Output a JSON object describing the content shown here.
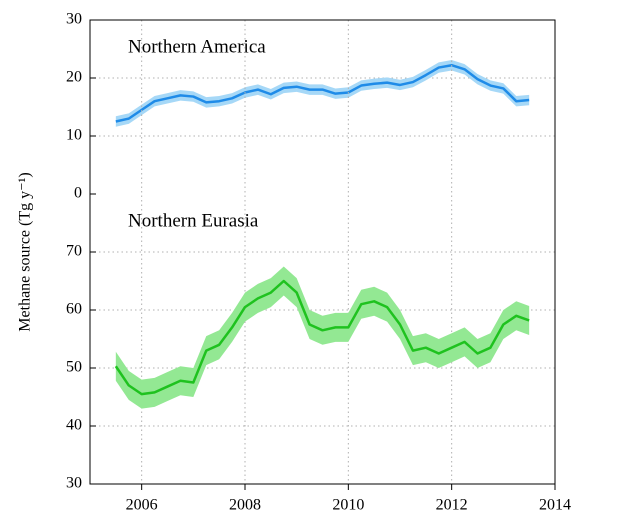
{
  "ylabel": "Methane source (Tg y⁻¹)",
  "chart_data": [
    {
      "type": "line",
      "annotation": "Northern America",
      "xlim": [
        2005,
        2014
      ],
      "ylim": [
        0,
        30
      ],
      "yticks": [
        0,
        10,
        20,
        30
      ],
      "grid": true,
      "series": [
        {
          "color": "#1f8be8",
          "band_color": "#a6d8f7",
          "x": [
            2005.5,
            2005.75,
            2006,
            2006.25,
            2006.5,
            2006.75,
            2007,
            2007.25,
            2007.5,
            2007.75,
            2008,
            2008.25,
            2008.5,
            2008.75,
            2009,
            2009.25,
            2009.5,
            2009.75,
            2010,
            2010.25,
            2010.5,
            2010.75,
            2011,
            2011.25,
            2011.5,
            2011.75,
            2012,
            2012.25,
            2012.5,
            2012.75,
            2013,
            2013.25,
            2013.5
          ],
          "values": [
            12.5,
            13,
            14.5,
            16,
            16.5,
            17,
            16.8,
            15.8,
            16,
            16.5,
            17.5,
            18,
            17.2,
            18.3,
            18.5,
            18,
            18,
            17.3,
            17.5,
            18.7,
            19,
            19.2,
            18.8,
            19.3,
            20.5,
            21.8,
            22.2,
            21.5,
            19.8,
            18.7,
            18.2,
            16,
            16.2
          ],
          "upper": [
            13.4,
            13.9,
            15.4,
            16.9,
            17.4,
            17.9,
            17.7,
            16.7,
            16.9,
            17.4,
            18.4,
            18.9,
            18.1,
            19.2,
            19.4,
            18.9,
            18.9,
            18.2,
            18.4,
            19.6,
            19.9,
            20.1,
            19.7,
            20.2,
            21.4,
            22.7,
            23.1,
            22.4,
            20.7,
            19.6,
            19.1,
            16.9,
            17.1
          ],
          "lower": [
            11.6,
            12.1,
            13.6,
            15.1,
            15.6,
            16.1,
            15.9,
            14.9,
            15.1,
            15.6,
            16.6,
            17.1,
            16.3,
            17.4,
            17.6,
            17.1,
            17.1,
            16.4,
            16.6,
            17.8,
            18.1,
            18.3,
            17.9,
            18.4,
            19.6,
            20.9,
            21.3,
            20.6,
            18.9,
            17.8,
            17.3,
            15.1,
            15.3
          ]
        }
      ]
    },
    {
      "type": "line",
      "annotation": "Northern Eurasia",
      "xlim": [
        2005,
        2014
      ],
      "xticks": [
        2006,
        2008,
        2010,
        2012,
        2014
      ],
      "ylim": [
        30,
        80
      ],
      "yticks": [
        30,
        40,
        50,
        60,
        70
      ],
      "grid": true,
      "series": [
        {
          "color": "#1fc21f",
          "band_color": "#93e893",
          "x": [
            2005.5,
            2005.75,
            2006,
            2006.25,
            2006.5,
            2006.75,
            2007,
            2007.25,
            2007.5,
            2007.75,
            2008,
            2008.25,
            2008.5,
            2008.75,
            2009,
            2009.25,
            2009.5,
            2009.75,
            2010,
            2010.25,
            2010.5,
            2010.75,
            2011,
            2011.25,
            2011.5,
            2011.75,
            2012,
            2012.25,
            2012.5,
            2012.75,
            2013,
            2013.25,
            2013.5
          ],
          "values": [
            50.3,
            47,
            45.5,
            45.8,
            46.8,
            47.8,
            47.5,
            53,
            54,
            57,
            60.5,
            62,
            63,
            65,
            63,
            57.5,
            56.5,
            57,
            57,
            61,
            61.5,
            60.5,
            57.5,
            53,
            53.5,
            52.5,
            53.5,
            54.5,
            52.5,
            53.5,
            57.5,
            59,
            58.2
          ],
          "upper": [
            52.8,
            49.5,
            48,
            48.3,
            49.3,
            50.3,
            50,
            55.5,
            56.5,
            59.5,
            63,
            64.5,
            65.5,
            67.5,
            65.5,
            60,
            59,
            59.5,
            59.5,
            63.5,
            64,
            63,
            60,
            55.5,
            56,
            55,
            56,
            57,
            55,
            56,
            60,
            61.5,
            60.7
          ],
          "lower": [
            47.8,
            44.5,
            43,
            43.3,
            44.3,
            45.3,
            45,
            50.5,
            51.5,
            54.5,
            58,
            59.5,
            60.5,
            62.5,
            60.5,
            55,
            54,
            54.5,
            54.5,
            58.5,
            59,
            58,
            55,
            50.5,
            51,
            50,
            51,
            52,
            50,
            51,
            55,
            56.5,
            55.7
          ]
        }
      ]
    }
  ]
}
